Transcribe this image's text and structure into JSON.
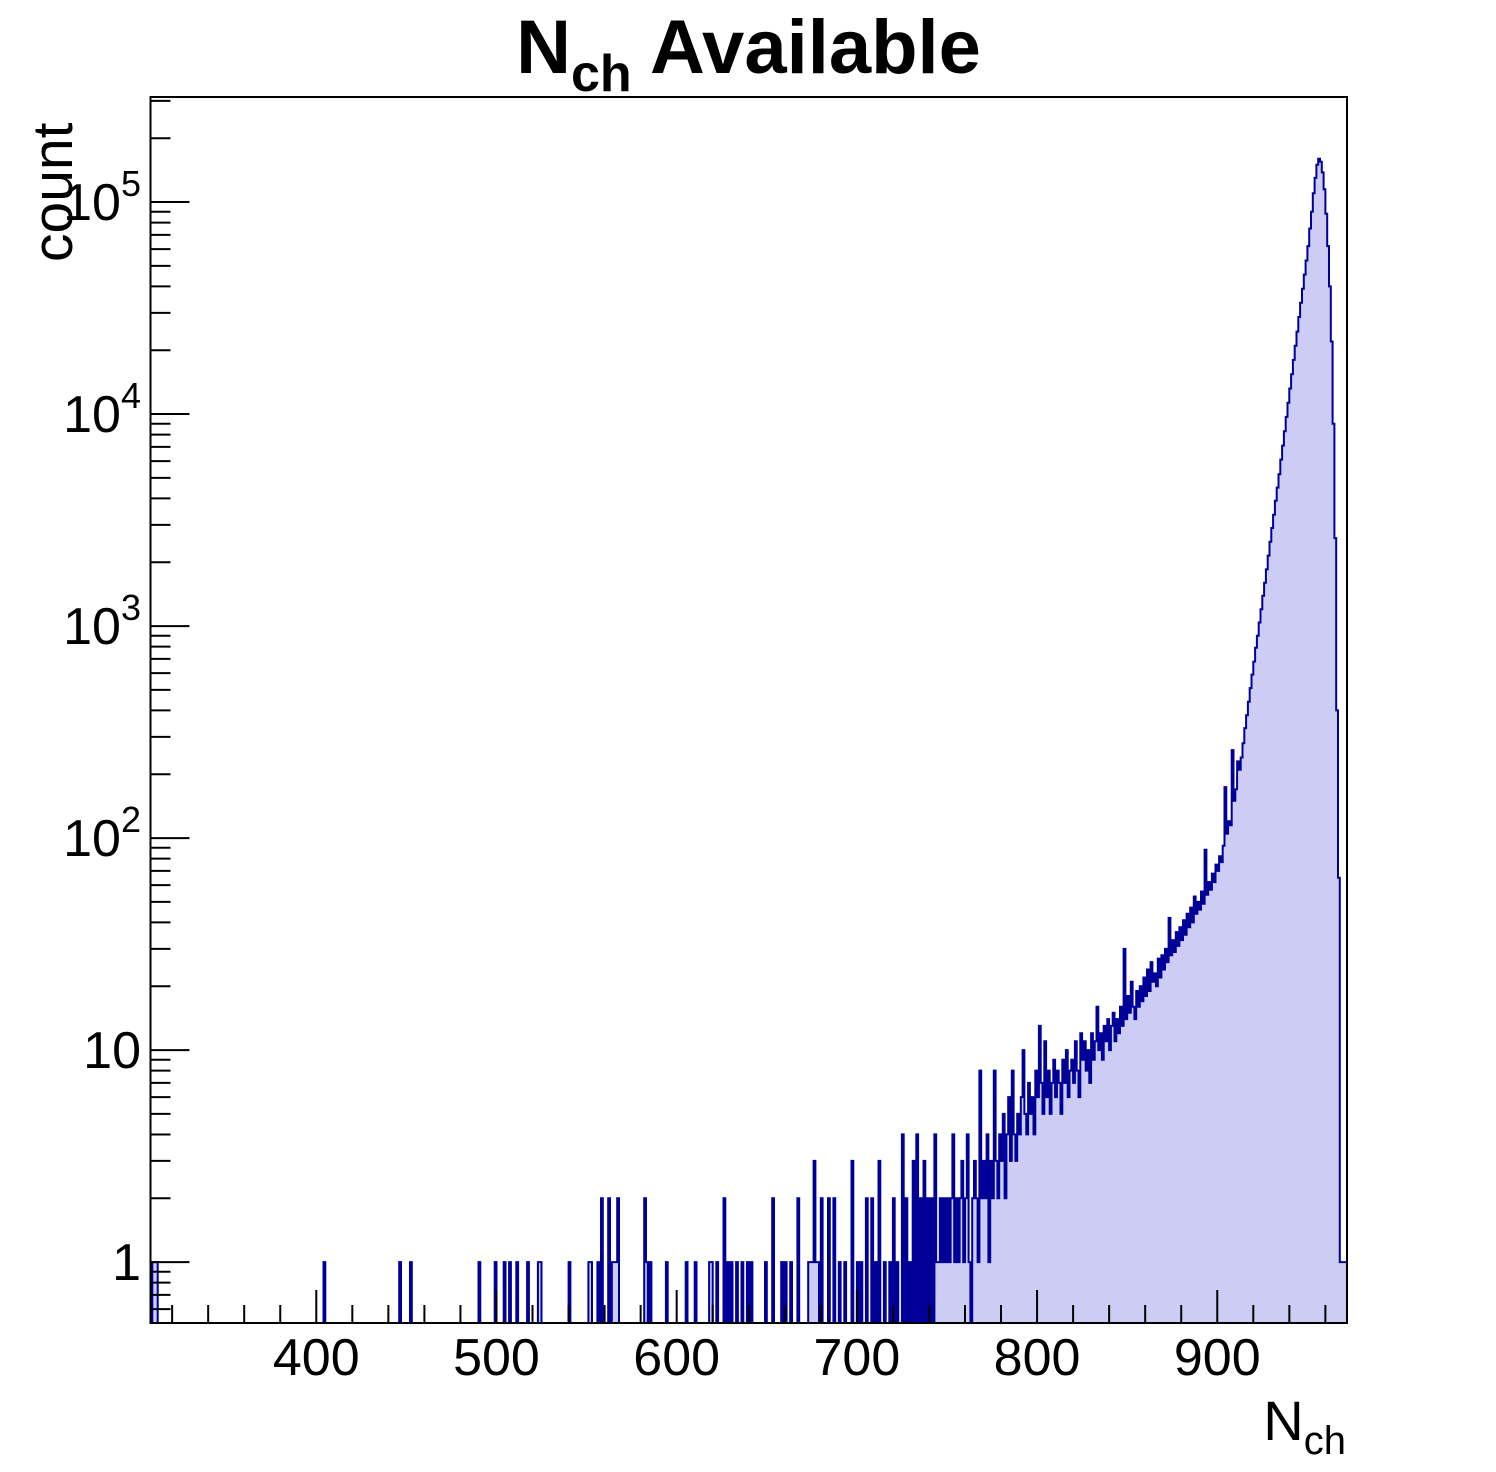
{
  "title": {
    "prefix": "N",
    "subscript": "ch",
    "suffix": " Available"
  },
  "y_axis": {
    "title": "count",
    "scale": "log",
    "range": [
      0.516,
      313000
    ],
    "ticks": [
      {
        "value": 1,
        "base": "1",
        "exp": ""
      },
      {
        "value": 10,
        "base": "10",
        "exp": ""
      },
      {
        "value": 100,
        "base": "10",
        "exp": "2"
      },
      {
        "value": 1000,
        "base": "10",
        "exp": "3"
      },
      {
        "value": 10000,
        "base": "10",
        "exp": "4"
      },
      {
        "value": 100000,
        "base": "10",
        "exp": "5"
      }
    ]
  },
  "x_axis": {
    "title_prefix": "N",
    "title_subscript": "ch",
    "range": [
      308,
      972
    ],
    "major_ticks": [
      400,
      500,
      600,
      700,
      800,
      900
    ],
    "minor_step": 20
  },
  "style": {
    "fill_color": "#ccccf5",
    "line_color": "#000099",
    "frame_color": "#000000",
    "text_color": "#000000",
    "background": "#ffffff"
  },
  "chart_data": {
    "type": "bar",
    "subtype": "histogram-log-y",
    "title": "N_ch Available",
    "xlabel": "N_ch",
    "ylabel": "count",
    "x_range": [
      308,
      972
    ],
    "y_range": [
      0.516,
      313000
    ],
    "y_scale": "log",
    "grid": false,
    "legend": false,
    "bin_width": 1,
    "peak": {
      "x": 956,
      "count": 160000
    },
    "sparse_bins": [
      [
        309,
        1
      ],
      [
        310,
        1
      ],
      [
        311,
        1
      ],
      [
        404,
        1
      ],
      [
        446,
        1
      ],
      [
        452,
        1
      ],
      [
        490,
        1
      ],
      [
        499,
        1
      ],
      [
        504,
        1
      ],
      [
        507,
        1
      ],
      [
        511,
        1
      ],
      [
        517,
        1
      ],
      [
        523,
        1
      ],
      [
        524,
        1
      ],
      [
        540,
        1
      ],
      [
        551,
        1
      ],
      [
        552,
        1
      ],
      [
        556,
        1
      ],
      [
        558,
        2
      ],
      [
        562,
        2
      ],
      [
        564,
        1
      ],
      [
        565,
        1
      ],
      [
        566,
        1
      ],
      [
        567,
        2
      ],
      [
        582,
        2
      ],
      [
        583,
        1
      ],
      [
        585,
        1
      ],
      [
        594,
        1
      ],
      [
        605,
        1
      ],
      [
        610,
        1
      ],
      [
        618,
        1
      ],
      [
        619,
        1
      ],
      [
        622,
        1
      ],
      [
        626,
        2
      ],
      [
        628,
        1
      ],
      [
        630,
        1
      ],
      [
        633,
        1
      ],
      [
        636,
        1
      ],
      [
        639,
        1
      ],
      [
        641,
        1
      ],
      [
        649,
        1
      ],
      [
        653,
        2
      ],
      [
        658,
        1
      ],
      [
        660,
        1
      ],
      [
        663,
        1
      ],
      [
        667,
        2
      ],
      [
        673,
        1
      ],
      [
        674,
        1
      ],
      [
        675,
        1
      ],
      [
        676,
        3
      ],
      [
        677,
        1
      ],
      [
        678,
        1
      ],
      [
        680,
        2
      ],
      [
        684,
        2
      ],
      [
        687,
        2
      ],
      [
        690,
        1
      ],
      [
        693,
        1
      ],
      [
        697,
        3
      ],
      [
        700,
        1
      ],
      [
        702,
        1
      ],
      [
        705,
        2
      ],
      [
        708,
        2
      ],
      [
        710,
        1
      ],
      [
        712,
        3
      ],
      [
        715,
        1
      ],
      [
        718,
        1
      ],
      [
        720,
        2
      ],
      [
        722,
        1
      ],
      [
        725,
        4
      ],
      [
        727,
        2
      ],
      [
        729,
        1
      ],
      [
        731,
        3
      ],
      [
        733,
        4
      ],
      [
        735,
        2
      ],
      [
        737,
        3
      ],
      [
        739,
        2
      ],
      [
        741,
        2
      ],
      [
        743,
        4
      ],
      [
        744,
        1
      ]
    ],
    "dense_start": 745,
    "dense_counts": [
      1,
      2,
      1,
      2,
      1,
      2,
      1,
      2,
      4,
      1,
      2,
      1,
      2,
      3,
      1,
      2,
      4,
      1,
      0,
      2,
      3,
      2,
      1,
      8,
      2,
      3,
      2,
      4,
      1,
      3,
      2,
      8,
      3,
      2,
      4,
      3,
      5,
      2,
      4,
      6,
      3,
      8,
      4,
      3,
      5,
      4,
      6,
      10,
      5,
      4,
      7,
      5,
      6,
      4,
      8,
      6,
      13,
      7,
      5,
      11,
      6,
      8,
      5,
      7,
      9,
      6,
      8,
      7,
      5,
      9,
      7,
      10,
      6,
      8,
      9,
      7,
      11,
      8,
      6,
      12,
      9,
      11,
      8,
      10,
      7,
      12,
      9,
      11,
      16,
      10,
      12,
      9,
      13,
      11,
      14,
      10,
      13,
      15,
      11,
      14,
      12,
      16,
      13,
      30,
      14,
      18,
      15,
      21,
      16,
      14,
      19,
      16,
      20,
      17,
      22,
      18,
      24,
      19,
      26,
      21,
      23,
      20,
      27,
      22,
      28,
      24,
      30,
      26,
      42,
      28,
      33,
      29,
      36,
      31,
      38,
      33,
      41,
      35,
      44,
      38,
      47,
      40,
      53,
      44,
      50,
      46,
      56,
      49,
      88,
      54,
      62,
      57,
      68,
      62,
      75,
      70,
      82,
      77,
      92,
      174,
      105,
      120,
      115,
      260,
      150,
      170,
      230,
      210,
      240,
      280,
      330,
      380,
      440,
      510,
      590,
      680,
      790,
      900,
      1040,
      1200,
      1390,
      1600,
      1850,
      2150,
      2500,
      2900,
      3350,
      3900,
      4500,
      5200,
      6100,
      7100,
      8300,
      9700,
      11300,
      13200,
      15400,
      18000,
      21000,
      24500,
      28700,
      33500,
      39000,
      45500,
      53000,
      62000,
      75000,
      90000,
      110000,
      130000,
      150000,
      160000,
      155000,
      138000,
      115000,
      88000,
      62000,
      40000,
      22000,
      9000,
      2600,
      400,
      65,
      1,
      1,
      1,
      1,
      1
    ]
  }
}
